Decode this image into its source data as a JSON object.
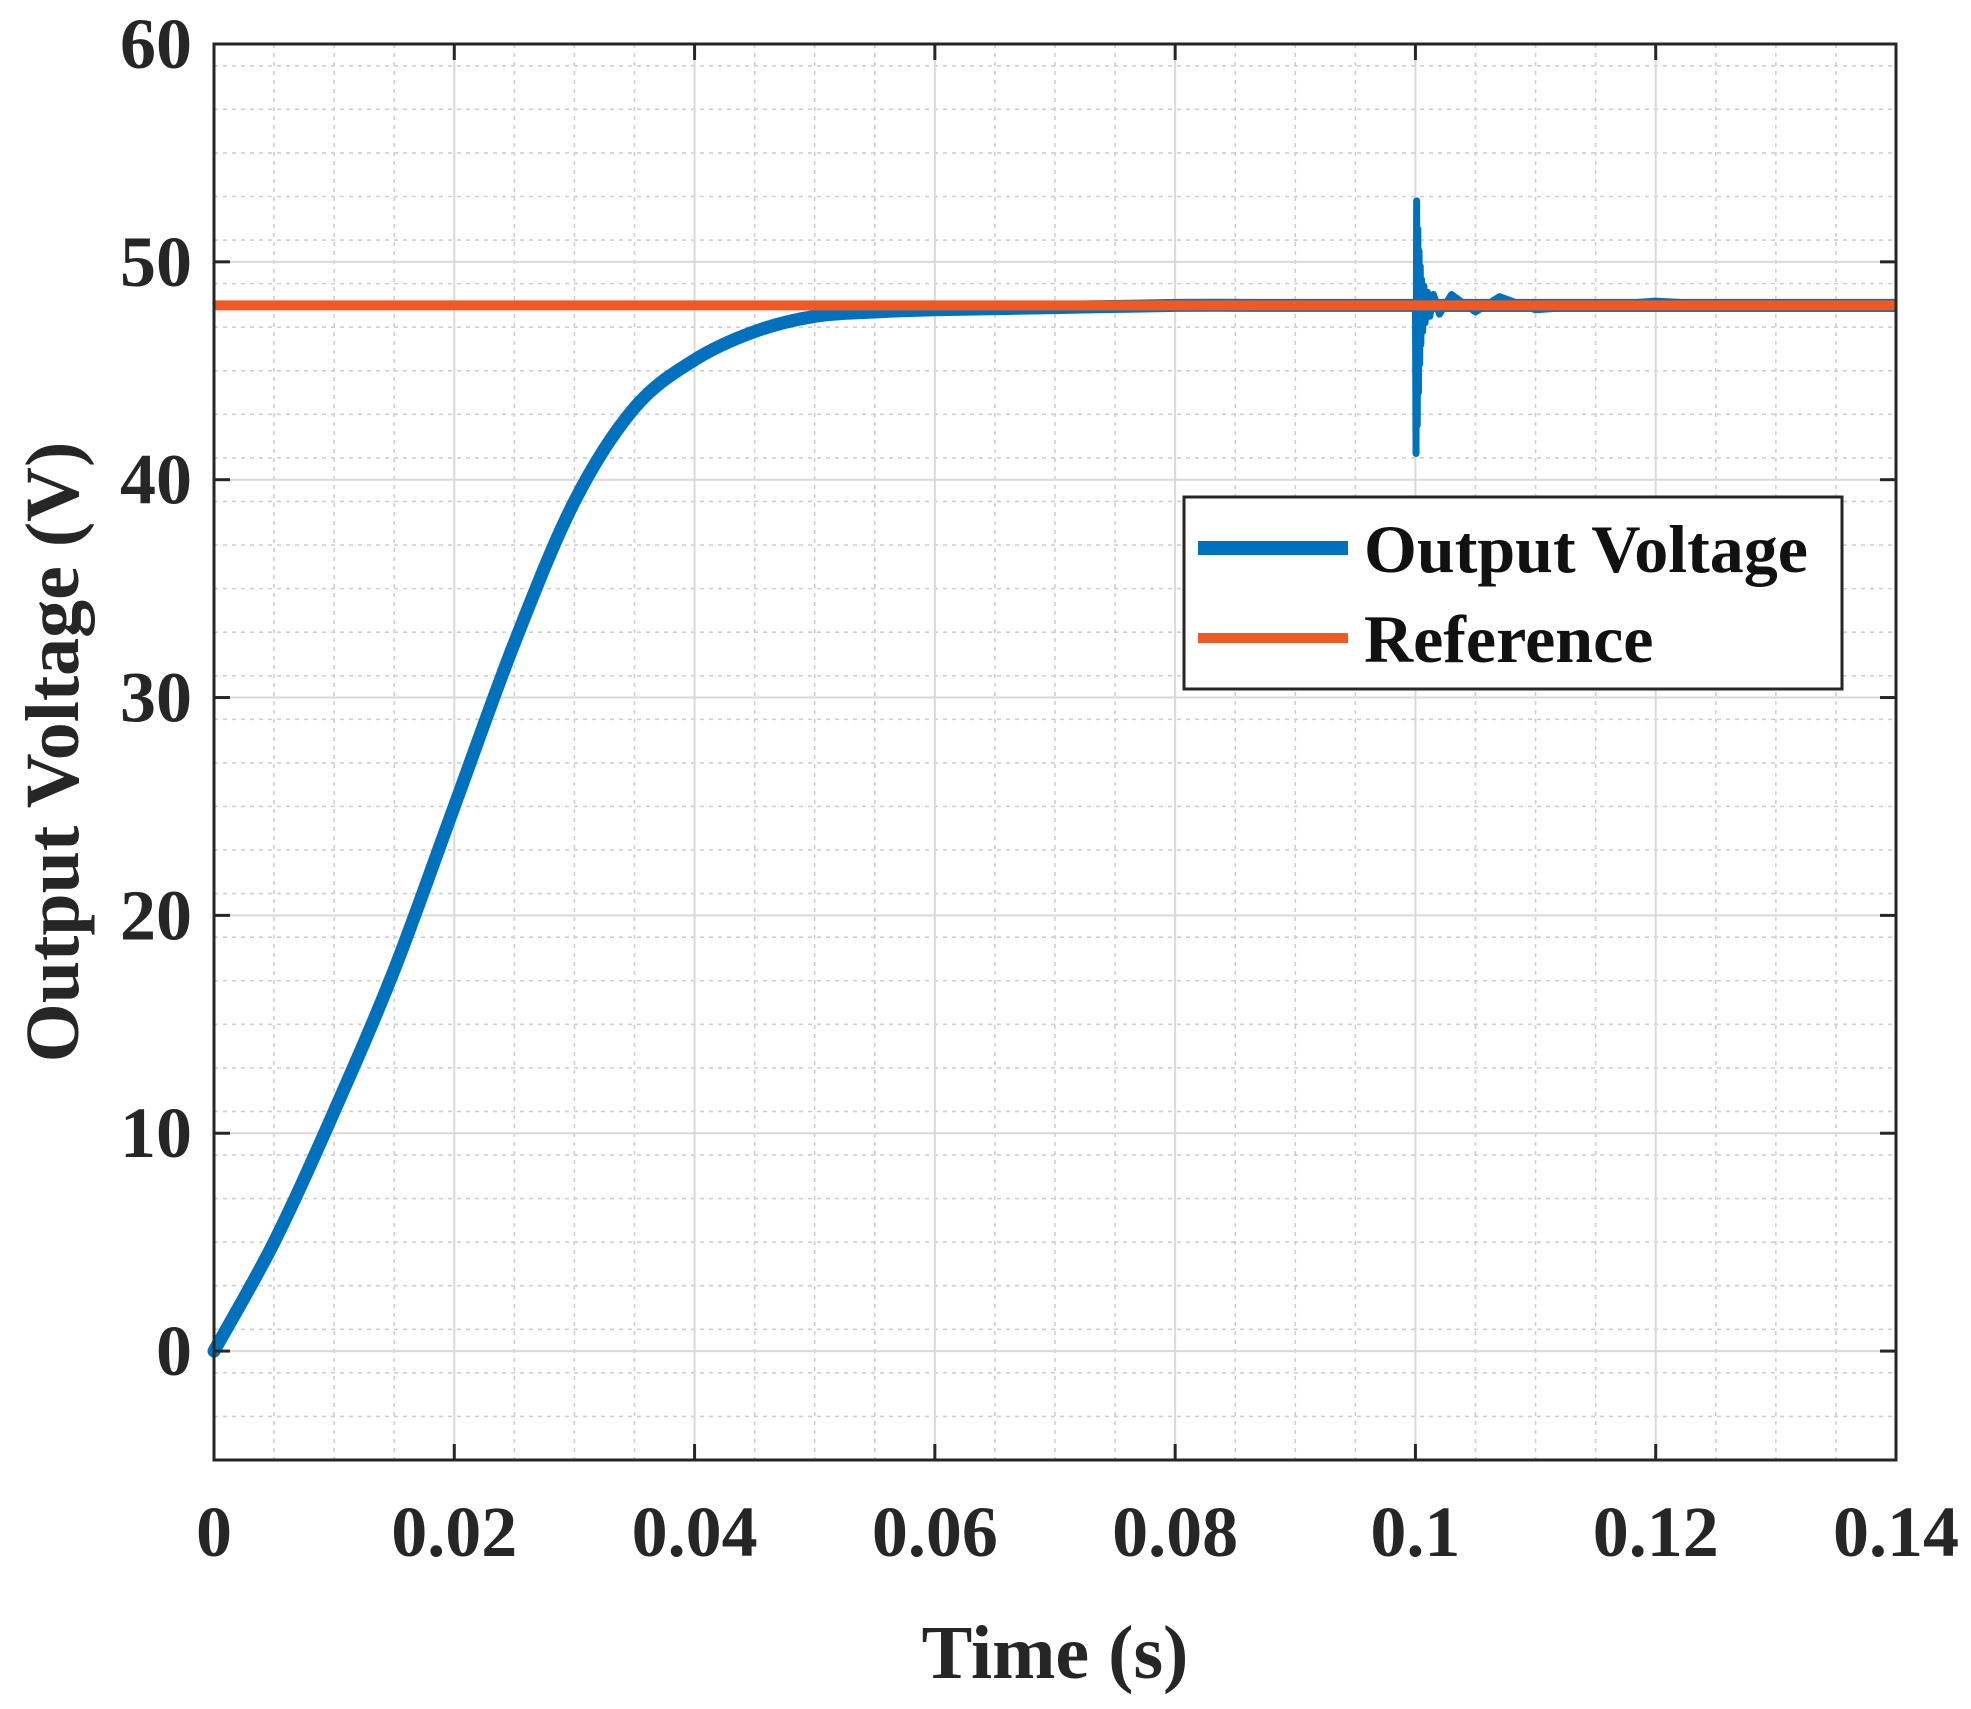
{
  "chart_data": {
    "type": "line",
    "title": "",
    "xlabel": "Time (s)",
    "ylabel": "Output Voltage (V)",
    "xlim": [
      0,
      0.14
    ],
    "ylim": [
      -5,
      60
    ],
    "xticks": [
      0,
      0.02,
      0.04,
      0.06,
      0.08,
      0.1,
      0.12,
      0.14
    ],
    "xtick_labels": [
      "0",
      "0.02",
      "0.04",
      "0.06",
      "0.08",
      "0.1",
      "0.12",
      "0.14"
    ],
    "yticks": [
      0,
      10,
      20,
      30,
      40,
      50,
      60
    ],
    "ytick_labels": [
      "0",
      "10",
      "20",
      "30",
      "40",
      "50",
      "60"
    ],
    "grid": true,
    "minor_grid": true,
    "legend_position": "upper-right",
    "series": [
      {
        "name": "Output Voltage",
        "color": "#0072BD",
        "x": [
          0,
          0.005,
          0.01,
          0.015,
          0.02,
          0.025,
          0.03,
          0.035,
          0.04,
          0.045,
          0.05,
          0.055,
          0.06,
          0.07,
          0.08,
          0.09,
          0.1
        ],
        "values": [
          0,
          5,
          11,
          17.5,
          25,
          32.5,
          39,
          43.3,
          45.5,
          46.8,
          47.5,
          47.7,
          47.8,
          47.9,
          48,
          48,
          48
        ],
        "disturbance": {
          "x": [
            0.1,
            0.10005,
            0.1001,
            0.10015,
            0.1002,
            0.10025,
            0.1003,
            0.10035,
            0.1004,
            0.10045,
            0.1005,
            0.1006,
            0.1007,
            0.1008,
            0.101,
            0.1012,
            0.1015,
            0.102,
            0.103,
            0.105,
            0.107,
            0.11,
            0.12,
            0.13,
            0.14
          ],
          "values": [
            48,
            41.2,
            52.8,
            42.5,
            51.5,
            44,
            50.5,
            45.3,
            49.8,
            46.2,
            49.2,
            46.8,
            48.9,
            47.2,
            48.6,
            47.5,
            48.5,
            47.6,
            48.5,
            47.7,
            48.4,
            47.8,
            48.2,
            47.9,
            48
          ],
          "steady_ripple_band": [
            47.7,
            48.3
          ]
        }
      },
      {
        "name": "Reference",
        "color": "#F05A22",
        "x": [
          0,
          0.14
        ],
        "values": [
          48,
          48
        ]
      }
    ]
  }
}
